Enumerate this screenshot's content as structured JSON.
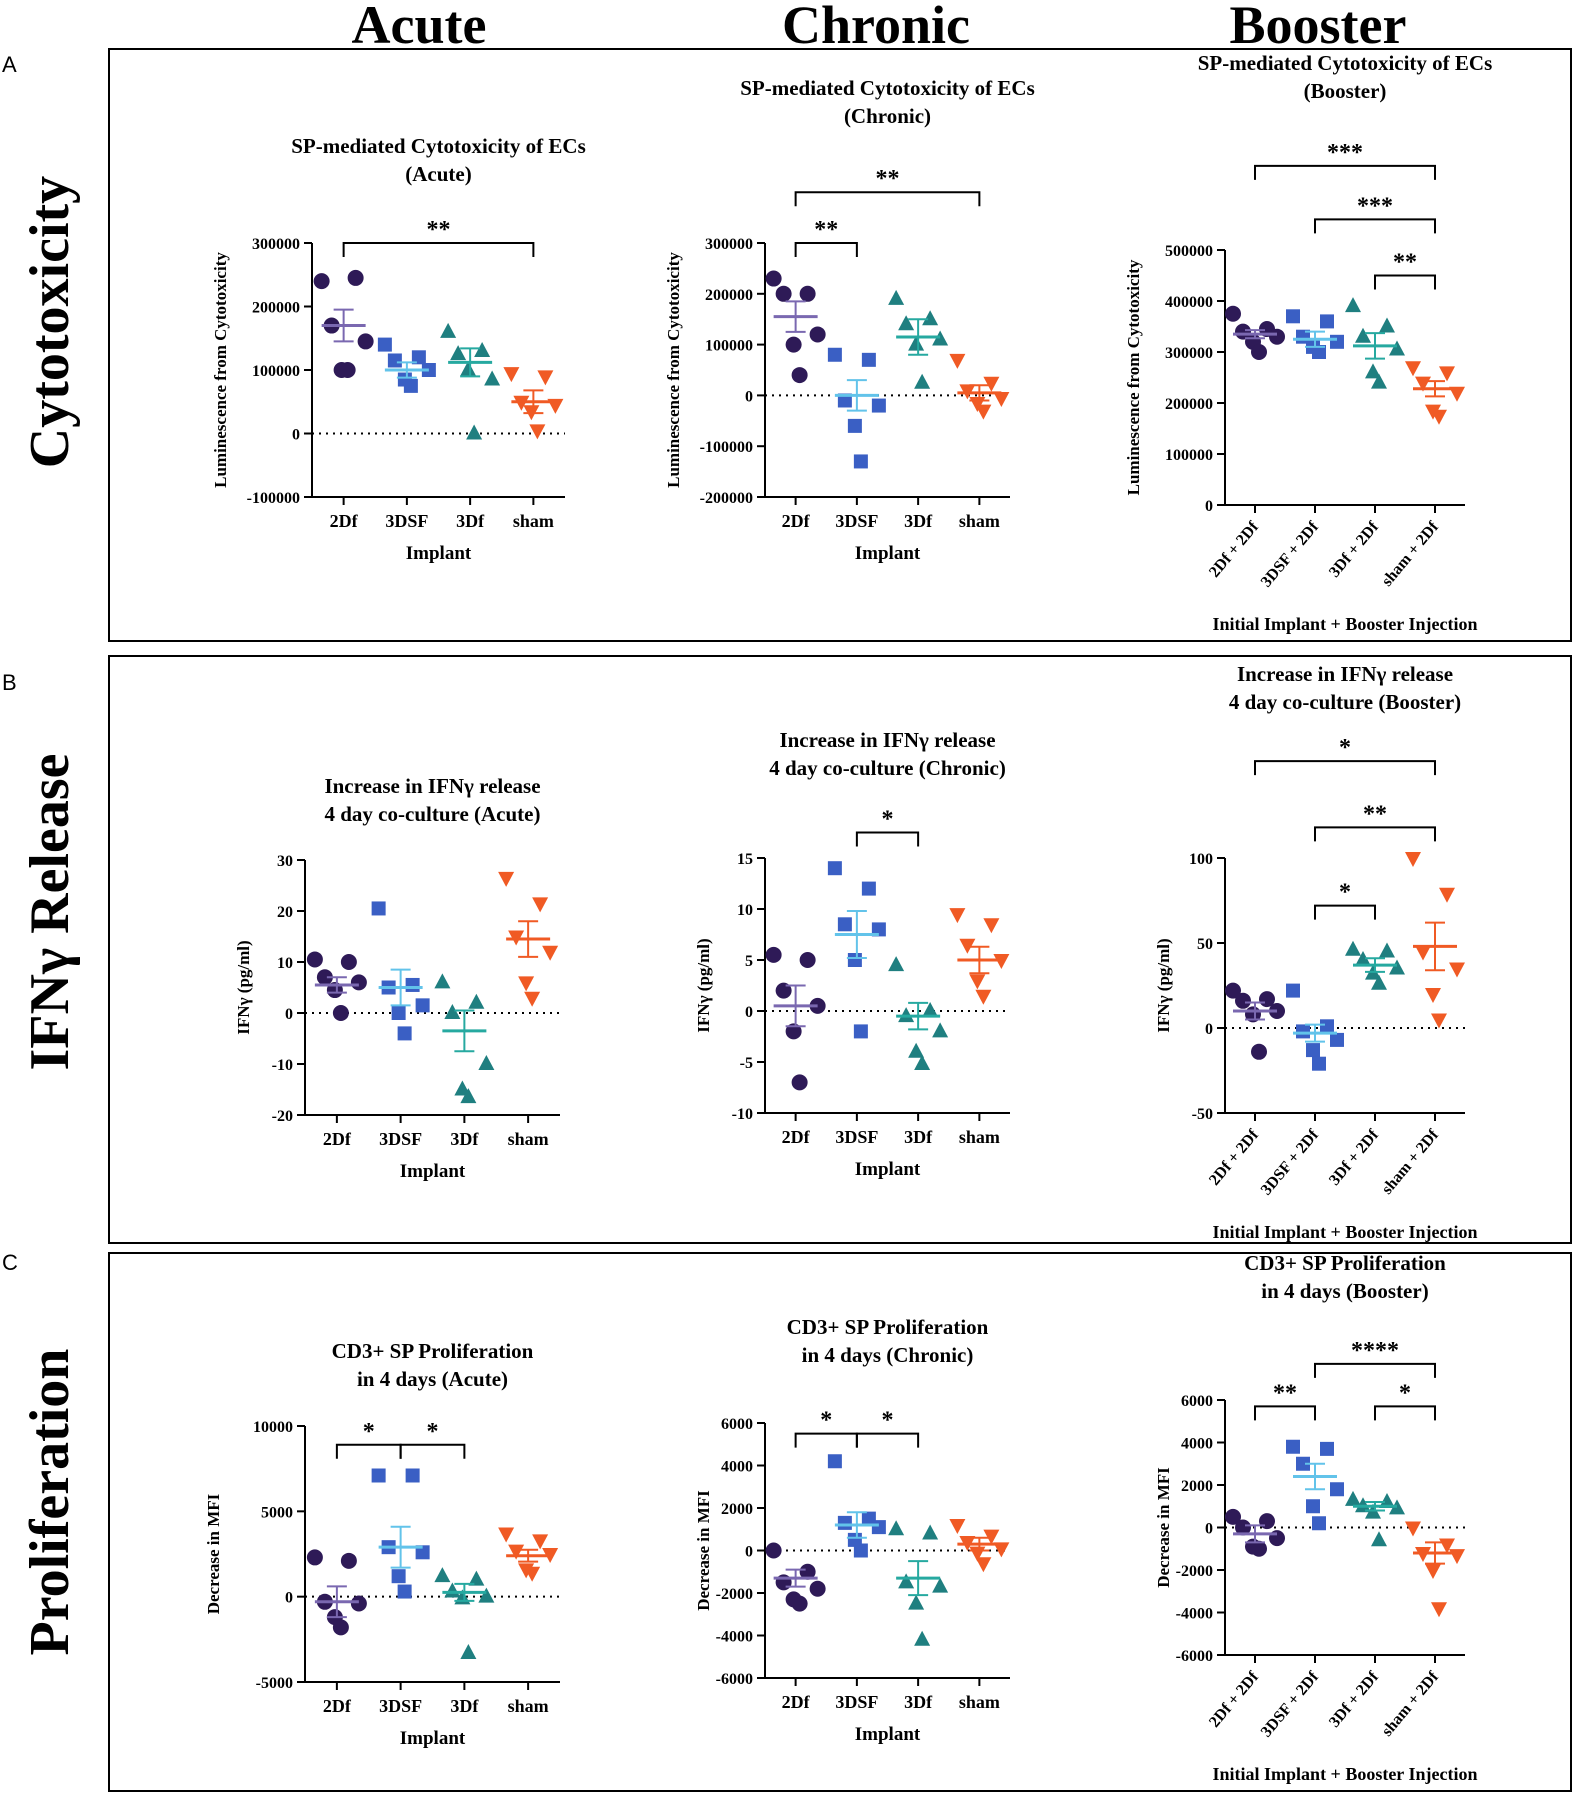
{
  "columns": [
    "Acute",
    "Chronic",
    "Booster"
  ],
  "rows": [
    {
      "letter": "A",
      "label": "Cytotoxicity"
    },
    {
      "letter": "B",
      "label": "IFNγ Release"
    },
    {
      "letter": "C",
      "label": "Proliferation"
    }
  ],
  "colors": {
    "2Df": "#2e1a57",
    "3DSF": "#3a5fc4",
    "3Df": "#1f7f80",
    "sham": "#f05a24"
  },
  "chart_data": [
    {
      "id": "A-acute",
      "type": "scatter",
      "title": [
        "SP-mediated Cytotoxicity of ECs",
        "(Acute)"
      ],
      "ylabel": "Luminescence from Cytotoxicity",
      "xlabel": "Implant",
      "categories": [
        "2Df",
        "3DSF",
        "3Df",
        "sham"
      ],
      "ylim": [
        -100000,
        300000
      ],
      "yticks": [
        300000,
        200000,
        100000,
        0,
        -100000
      ],
      "ytick_labels": [
        "300000",
        "200000",
        "100000",
        "0",
        "-100000"
      ],
      "mean": [
        170000,
        100000,
        112000,
        50000
      ],
      "sem": [
        25000,
        12000,
        22000,
        18000
      ],
      "points": [
        [
          240000,
          245000,
          170000,
          145000,
          100000,
          100000
        ],
        [
          140000,
          120000,
          115000,
          100000,
          85000,
          75000
        ],
        [
          160000,
          130000,
          125000,
          85000,
          100000,
          0
        ],
        [
          95000,
          90000,
          50000,
          45000,
          35000,
          5000
        ]
      ],
      "brackets": [
        {
          "from": 0,
          "to": 3,
          "level": 300000,
          "label": "**"
        }
      ],
      "rotated": false
    },
    {
      "id": "A-chronic",
      "type": "scatter",
      "title": [
        "SP-mediated Cytotoxicity of ECs",
        "(Chronic)"
      ],
      "ylabel": "Luminescence from Cytotoxicity",
      "xlabel": "Implant",
      "categories": [
        "2Df",
        "3DSF",
        "3Df",
        "sham"
      ],
      "ylim": [
        -200000,
        300000
      ],
      "yticks": [
        300000,
        200000,
        100000,
        0,
        -100000,
        -200000
      ],
      "ytick_labels": [
        "300000",
        "200000",
        "100000",
        "0",
        "-100000",
        "-200000"
      ],
      "mean": [
        155000,
        0,
        115000,
        5000
      ],
      "sem": [
        30000,
        30000,
        35000,
        15000
      ],
      "points": [
        [
          230000,
          200000,
          200000,
          120000,
          100000,
          40000
        ],
        [
          80000,
          70000,
          -10000,
          -20000,
          -60000,
          -130000
        ],
        [
          190000,
          150000,
          140000,
          110000,
          100000,
          25000
        ],
        [
          70000,
          25000,
          10000,
          -5000,
          -15000,
          -30000
        ]
      ],
      "brackets": [
        {
          "from": 0,
          "to": 1,
          "level": 300000,
          "label": "**"
        },
        {
          "from": 0,
          "to": 3,
          "level": 400000,
          "label": "**"
        }
      ],
      "rotated": false
    },
    {
      "id": "A-booster",
      "type": "scatter",
      "title": [
        "SP-mediated Cytotoxicity of ECs",
        "(Booster)"
      ],
      "ylabel": "Luminescence from Cytotoxicity",
      "xlabel": "Initial Implant + Booster Injection",
      "categories": [
        "2Df + 2Df",
        "3DSF + 2Df",
        "3Df + 2Df",
        "sham + 2Df"
      ],
      "ylim": [
        0,
        500000
      ],
      "yticks": [
        500000,
        400000,
        300000,
        200000,
        100000,
        0
      ],
      "ytick_labels": [
        "500000",
        "400000",
        "300000",
        "200000",
        "100000",
        "0"
      ],
      "mean": [
        335000,
        325000,
        312000,
        228000
      ],
      "sem": [
        8000,
        15000,
        25000,
        15000
      ],
      "points": [
        [
          375000,
          345000,
          340000,
          330000,
          320000,
          300000
        ],
        [
          370000,
          360000,
          330000,
          320000,
          310000,
          300000
        ],
        [
          390000,
          350000,
          330000,
          305000,
          260000,
          240000
        ],
        [
          270000,
          260000,
          240000,
          220000,
          185000,
          175000
        ]
      ],
      "brackets": [
        {
          "from": 2,
          "to": 3,
          "level": 450000,
          "label": "**"
        },
        {
          "from": 1,
          "to": 3,
          "level": 560000,
          "label": "***"
        },
        {
          "from": 0,
          "to": 3,
          "level": 665000,
          "label": "***"
        }
      ],
      "rotated": true
    },
    {
      "id": "B-acute",
      "type": "scatter",
      "title": [
        "Increase in IFNγ release",
        "4 day co-culture (Acute)"
      ],
      "ylabel": "IFNγ (pg/ml)",
      "xlabel": "Implant",
      "categories": [
        "2Df",
        "3DSF",
        "3Df",
        "sham"
      ],
      "ylim": [
        -20,
        30
      ],
      "yticks": [
        30,
        20,
        10,
        0,
        -10,
        -20
      ],
      "ytick_labels": [
        "30",
        "20",
        "10",
        "0",
        "-10",
        "-20"
      ],
      "mean": [
        5.5,
        5,
        -3.5,
        14.5
      ],
      "sem": [
        1.5,
        3.5,
        4,
        3.5
      ],
      "points": [
        [
          10.5,
          10,
          7,
          6,
          4.5,
          0
        ],
        [
          20.5,
          5.5,
          5,
          1.5,
          0,
          -4
        ],
        [
          6,
          2,
          0,
          -10,
          -15,
          -16.5
        ],
        [
          26.5,
          21.5,
          15,
          12,
          6,
          3
        ]
      ],
      "brackets": [],
      "rotated": false
    },
    {
      "id": "B-chronic",
      "type": "scatter",
      "title": [
        "Increase in IFNγ release",
        "4 day co-culture (Chronic)"
      ],
      "ylabel": "IFNγ (pg/ml)",
      "xlabel": "Implant",
      "categories": [
        "2Df",
        "3DSF",
        "3Df",
        "sham"
      ],
      "ylim": [
        -10,
        15
      ],
      "yticks": [
        15,
        10,
        5,
        0,
        -5,
        -10
      ],
      "ytick_labels": [
        "15",
        "10",
        "5",
        "0",
        "-5",
        "-10"
      ],
      "mean": [
        0.5,
        7.5,
        -0.5,
        5
      ],
      "sem": [
        2,
        2.3,
        1.3,
        1.3
      ],
      "points": [
        [
          5.5,
          5,
          2,
          0.5,
          -2,
          -7
        ],
        [
          14,
          12,
          8.5,
          8,
          5,
          -2
        ],
        [
          4.5,
          0,
          -0.5,
          -2,
          -4,
          -5.2
        ],
        [
          9.5,
          8.5,
          6.5,
          5,
          3,
          1.5
        ]
      ],
      "brackets": [
        {
          "from": 1,
          "to": 2,
          "level": 17.5,
          "label": "*"
        }
      ],
      "rotated": false
    },
    {
      "id": "B-booster",
      "type": "scatter",
      "title": [
        "Increase in IFNγ release",
        "4 day co-culture (Booster)"
      ],
      "ylabel": "IFNγ (pg/ml)",
      "xlabel": "Initial Implant + Booster Injection",
      "categories": [
        "2Df + 2Df",
        "3DSF + 2Df",
        "3Df + 2Df",
        "sham + 2Df"
      ],
      "ylim": [
        -50,
        100
      ],
      "yticks": [
        100,
        50,
        0,
        -50
      ],
      "ytick_labels": [
        "100",
        "50",
        "0",
        "-50"
      ],
      "mean": [
        10,
        -3,
        37,
        48
      ],
      "sem": [
        5,
        5,
        4,
        14
      ],
      "points": [
        [
          22,
          17,
          16,
          10,
          8,
          -14
        ],
        [
          22,
          1,
          -2,
          -7,
          -13,
          -21
        ],
        [
          46,
          45,
          40,
          35,
          32,
          26
        ],
        [
          100,
          79,
          45,
          35,
          20,
          5
        ]
      ],
      "brackets": [
        {
          "from": 1,
          "to": 2,
          "level": 72,
          "label": "*"
        },
        {
          "from": 1,
          "to": 3,
          "level": 118,
          "label": "**"
        },
        {
          "from": 0,
          "to": 3,
          "level": 157,
          "label": "*"
        }
      ],
      "rotated": true
    },
    {
      "id": "C-acute",
      "type": "scatter",
      "title": [
        "CD3+ SP Proliferation",
        "in 4 days (Acute)"
      ],
      "ylabel": "Decrease in MFI",
      "xlabel": "Implant",
      "categories": [
        "2Df",
        "3DSF",
        "3Df",
        "sham"
      ],
      "ylim": [
        -5000,
        10000
      ],
      "yticks": [
        10000,
        5000,
        0,
        -5000
      ],
      "ytick_labels": [
        "10000",
        "5000",
        "0",
        "-5000"
      ],
      "mean": [
        -300,
        2900,
        250,
        2400
      ],
      "sem": [
        900,
        1200,
        500,
        350
      ],
      "points": [
        [
          2300,
          2100,
          -300,
          -400,
          -1200,
          -1800
        ],
        [
          7100,
          7100,
          2900,
          2600,
          1200,
          300
        ],
        [
          1200,
          1000,
          300,
          0,
          -100,
          -3300
        ],
        [
          3700,
          3300,
          2700,
          2500,
          1600,
          1400
        ]
      ],
      "brackets": [
        {
          "from": 0,
          "to": 1,
          "level": 8900,
          "label": "*"
        },
        {
          "from": 1,
          "to": 2,
          "level": 8900,
          "label": "*"
        }
      ],
      "rotated": false
    },
    {
      "id": "C-chronic",
      "type": "scatter",
      "title": [
        "CD3+ SP Proliferation",
        "in 4 days (Chronic)"
      ],
      "ylabel": "Decrease in MFI",
      "xlabel": "Implant",
      "categories": [
        "2Df",
        "3DSF",
        "3Df",
        "sham"
      ],
      "ylim": [
        -6000,
        6000
      ],
      "yticks": [
        6000,
        4000,
        2000,
        0,
        -2000,
        -4000,
        -6000
      ],
      "ytick_labels": [
        "6000",
        "4000",
        "2000",
        "0",
        "-2000",
        "-4000",
        "-6000"
      ],
      "mean": [
        -1300,
        1200,
        -1300,
        300
      ],
      "sem": [
        400,
        600,
        800,
        300
      ],
      "points": [
        [
          0,
          -1000,
          -1500,
          -1800,
          -2300,
          -2500
        ],
        [
          4200,
          1500,
          1300,
          1100,
          500,
          0
        ],
        [
          1000,
          800,
          -1500,
          -1700,
          -2500,
          -4200
        ],
        [
          1200,
          700,
          400,
          100,
          -100,
          -600
        ]
      ],
      "brackets": [
        {
          "from": 0,
          "to": 1,
          "level": 5500,
          "label": "*"
        },
        {
          "from": 1,
          "to": 2,
          "level": 5500,
          "label": "*"
        }
      ],
      "rotated": false
    },
    {
      "id": "C-booster",
      "type": "scatter",
      "title": [
        "CD3+ SP Proliferation",
        "in 4 days (Booster)"
      ],
      "ylabel": "Decrease in MFI",
      "xlabel": "Initial Implant + Booster Injection",
      "categories": [
        "2Df + 2Df",
        "3DSF + 2Df",
        "3Df + 2Df",
        "sham + 2Df"
      ],
      "ylim": [
        -6000,
        6000
      ],
      "yticks": [
        6000,
        4000,
        2000,
        0,
        -2000,
        -4000,
        -6000
      ],
      "ytick_labels": [
        "6000",
        "4000",
        "2000",
        "0",
        "-2000",
        "-4000",
        "-6000"
      ],
      "mean": [
        -300,
        2400,
        1000,
        -1200
      ],
      "sem": [
        400,
        600,
        200,
        500
      ],
      "points": [
        [
          500,
          300,
          0,
          -500,
          -900,
          -1000
        ],
        [
          3800,
          3700,
          3000,
          1800,
          1000,
          200
        ],
        [
          1300,
          1200,
          1000,
          900,
          700,
          -600
        ],
        [
          0,
          -800,
          -1200,
          -1300,
          -2000,
          -3800
        ]
      ],
      "brackets": [
        {
          "from": 0,
          "to": 1,
          "level": 5700,
          "label": "**"
        },
        {
          "from": 2,
          "to": 3,
          "level": 5700,
          "label": "*"
        },
        {
          "from": 1,
          "to": 3,
          "level": 7700,
          "label": "****"
        }
      ],
      "rotated": true
    }
  ]
}
